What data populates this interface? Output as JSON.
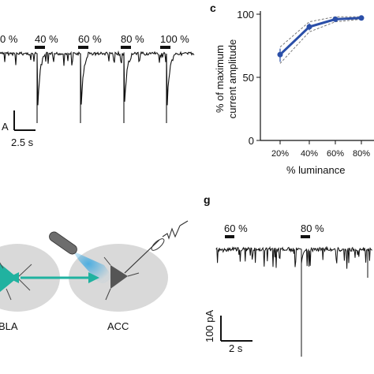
{
  "panel_labels": {
    "c": "c",
    "g": "g"
  },
  "panel_top_left": {
    "stim_labels": [
      "0 %",
      "40 %",
      "60 %",
      "80 %",
      "100 %"
    ],
    "scalebar": {
      "current_label": "A",
      "time_label": "2.5 s"
    }
  },
  "panel_c": {
    "ylabel_line1": "% of maximum",
    "ylabel_line2": "current amplitude",
    "xlabel": "% luminance",
    "chart_data": {
      "type": "line",
      "x_categories": [
        "20%",
        "40%",
        "60%",
        "80%"
      ],
      "y_ticks": [
        "0",
        "50",
        "100"
      ],
      "ylim": [
        0,
        100
      ],
      "series": [
        {
          "values": [
            68,
            90,
            96,
            97
          ],
          "color": "#2b4fa8"
        }
      ],
      "error_band": {
        "upper": [
          74,
          94,
          98,
          98
        ],
        "lower": [
          61,
          86,
          94,
          96
        ]
      }
    }
  },
  "panel_f": {
    "region_left": "BLA",
    "region_right": "ACC"
  },
  "panel_g": {
    "stim_labels": [
      "60 %",
      "80 %"
    ],
    "scalebar": {
      "current_label": "100 pA",
      "time_label": "2 s"
    }
  }
}
